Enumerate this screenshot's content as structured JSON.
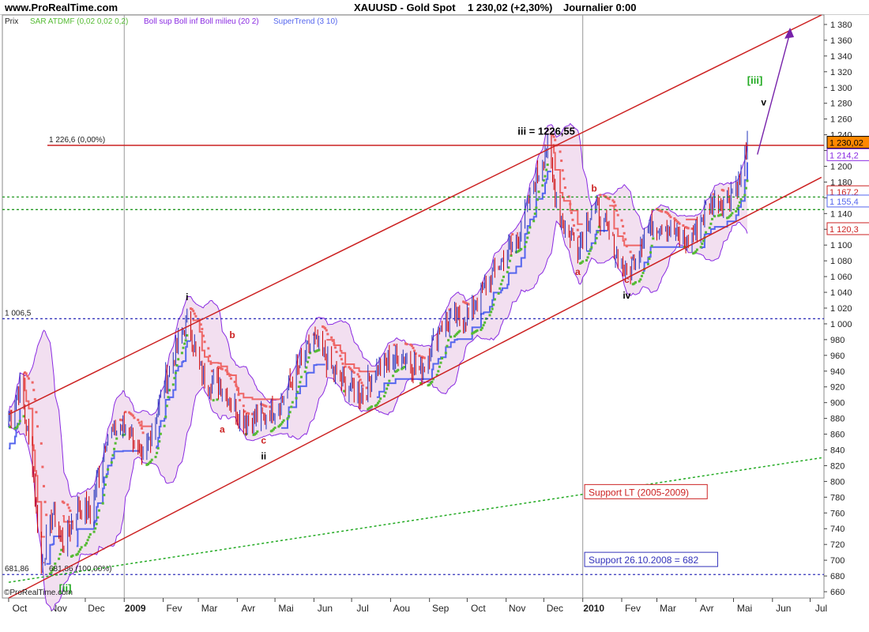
{
  "header": {
    "site": "www.ProRealTime.com",
    "instrument": "XAUUSD - Gold Spot",
    "last": "1 230,02 (+2,30%)",
    "period": "Journalier  0:00"
  },
  "legend": {
    "price": "Prix",
    "sar": "SAR ATDMF (0,02 0,02 0,2)",
    "boll": "Boll sup Boll inf Boll milieu (20 2)",
    "supertrend": "SuperTrend (3 10)"
  },
  "copyright": "©ProRealTime.com",
  "colors": {
    "candle": "#cc0000",
    "candle_up": "#2233bb",
    "bollinger": "#8a2be2",
    "bollinger_fill": "#f2dff0",
    "sar": "#55bb33",
    "supertrend_down": "#ee6666",
    "supertrend_up": "#5566ee",
    "channel": "#cc2222",
    "lt_support": "#22aa22",
    "dotted_blue": "#3333bb",
    "projection": "#7722aa",
    "axis_badge_bg": "#ff8800"
  },
  "chart_data": {
    "type": "candlestick",
    "x_ticks": [
      "Oct",
      "Nov",
      "Dec",
      "2009",
      "Fev",
      "Mar",
      "Avr",
      "Mai",
      "Jun",
      "Jul",
      "Aou",
      "Sep",
      "Oct",
      "Nov",
      "Dec",
      "2010",
      "Fev",
      "Mar",
      "Avr",
      "Mai",
      "Jun",
      "Jul"
    ],
    "y_ticks": [
      660,
      680,
      700,
      720,
      740,
      760,
      780,
      800,
      820,
      840,
      860,
      880,
      900,
      920,
      940,
      960,
      980,
      1000,
      1020,
      1040,
      1060,
      1080,
      1100,
      1120,
      1140,
      1160,
      1180,
      1200,
      1220,
      1240,
      1260,
      1280,
      1300,
      1320,
      1340,
      1360,
      1380
    ],
    "y_tick_labels": [
      "660",
      "680",
      "700",
      "720",
      "740",
      "760",
      "780",
      "800",
      "820",
      "840",
      "860",
      "880",
      "900",
      "920",
      "940",
      "960",
      "980",
      "1 000",
      "1 020",
      "1 040",
      "1 060",
      "1 080",
      "1 100",
      "1 120",
      "1 140",
      "1 160",
      "1 180",
      "1 200",
      "1 220",
      "1 240",
      "1 260",
      "1 280",
      "1 300",
      "1 320",
      "1 340",
      "1 360",
      "1 380"
    ],
    "ylim": [
      652,
      1392
    ],
    "price_path": [
      [
        "2008-10-01",
        880
      ],
      [
        "2008-10-10",
        920
      ],
      [
        "2008-10-20",
        820
      ],
      [
        "2008-10-27",
        690
      ],
      [
        "2008-11-05",
        760
      ],
      [
        "2008-11-14",
        720
      ],
      [
        "2008-11-25",
        770
      ],
      [
        "2008-12-05",
        760
      ],
      [
        "2008-12-18",
        860
      ],
      [
        "2009-01-05",
        870
      ],
      [
        "2009-01-15",
        820
      ],
      [
        "2009-02-01",
        920
      ],
      [
        "2009-02-20",
        1005
      ],
      [
        "2009-03-05",
        930
      ],
      [
        "2009-03-20",
        920
      ],
      [
        "2009-04-05",
        880
      ],
      [
        "2009-04-20",
        880
      ],
      [
        "2009-05-05",
        900
      ],
      [
        "2009-06-01",
        980
      ],
      [
        "2009-06-20",
        930
      ],
      [
        "2009-07-08",
        910
      ],
      [
        "2009-07-25",
        950
      ],
      [
        "2009-08-10",
        960
      ],
      [
        "2009-08-25",
        940
      ],
      [
        "2009-09-10",
        1000
      ],
      [
        "2009-10-01",
        1010
      ],
      [
        "2009-10-20",
        1060
      ],
      [
        "2009-11-10",
        1110
      ],
      [
        "2009-12-03",
        1226
      ],
      [
        "2009-12-15",
        1130
      ],
      [
        "2009-12-28",
        1100
      ],
      [
        "2010-01-10",
        1150
      ],
      [
        "2010-01-25",
        1100
      ],
      [
        "2010-02-05",
        1060
      ],
      [
        "2010-02-20",
        1120
      ],
      [
        "2010-03-05",
        1130
      ],
      [
        "2010-03-25",
        1100
      ],
      [
        "2010-04-10",
        1150
      ],
      [
        "2010-04-25",
        1160
      ],
      [
        "2010-05-06",
        1180
      ],
      [
        "2010-05-12",
        1230
      ]
    ],
    "horizontal_levels": [
      {
        "value": 1226.6,
        "label": "1 226,6 (0,00%)",
        "color": "#cc2222",
        "style": "solid"
      },
      {
        "value": 1006.5,
        "label": "1 006,5",
        "color": "#3333bb",
        "style": "dotted"
      },
      {
        "value": 681.86,
        "label": "681,86",
        "color": "#3333bb",
        "style": "dotted"
      },
      {
        "value": 1161,
        "label": "",
        "color": "#229922",
        "style": "dotted"
      },
      {
        "value": 1145,
        "label": "",
        "color": "#229922",
        "style": "dotted"
      }
    ],
    "level_annotation": "681,86 (100,00%)",
    "channel": {
      "upper": [
        [
          "2008-10-01",
          885
        ],
        [
          "2010-07-10",
          1392
        ]
      ],
      "lower": [
        [
          "2008-10-01",
          652
        ],
        [
          "2010-07-10",
          1186
        ]
      ],
      "mid_line": [
        [
          "2008-10-01",
          1226.6
        ],
        [
          "2010-07-10",
          1226.6
        ]
      ]
    },
    "lt_support": [
      [
        "2008-10-01",
        672
      ],
      [
        "2010-07-10",
        830
      ]
    ],
    "projection": [
      [
        "2010-05-20",
        1215
      ],
      [
        "2010-06-15",
        1370
      ]
    ],
    "wave_labels": [
      {
        "text": "i",
        "date": "2009-02-20",
        "value": 1030,
        "color": "#000000"
      },
      {
        "text": "ii",
        "date": "2009-04-22",
        "value": 828,
        "color": "#000000"
      },
      {
        "text": "iii = 1226,55",
        "date": "2009-12-03",
        "value": 1240,
        "color": "#000000"
      },
      {
        "text": "iv",
        "date": "2010-02-05",
        "value": 1032,
        "color": "#000000"
      },
      {
        "text": "v",
        "date": "2010-05-25",
        "value": 1277,
        "color": "#000000"
      },
      {
        "text": "[iii]",
        "date": "2010-05-18",
        "value": 1305,
        "color": "#22aa22"
      },
      {
        "text": "[ii]",
        "date": "2008-11-15",
        "value": 660,
        "color": "#22aa22"
      },
      {
        "text": "a",
        "date": "2009-03-20",
        "value": 862,
        "color": "#cc2222"
      },
      {
        "text": "b",
        "date": "2009-03-28",
        "value": 982,
        "color": "#cc2222"
      },
      {
        "text": "c",
        "date": "2009-04-22",
        "value": 848,
        "color": "#cc2222"
      },
      {
        "text": "a",
        "date": "2009-12-28",
        "value": 1062,
        "color": "#cc2222"
      },
      {
        "text": "b",
        "date": "2010-01-10",
        "value": 1168,
        "color": "#cc2222"
      },
      {
        "text": "c",
        "date": "2010-02-05",
        "value": 1052,
        "color": "#cc2222"
      }
    ],
    "boxes": [
      {
        "text": "Support LT (2005-2009)",
        "date": "2010-01-05",
        "value": 784,
        "color": "#cc2222"
      },
      {
        "text": "Support 26.10.2008 = 682",
        "date": "2010-01-05",
        "value": 698,
        "color": "#3333bb"
      }
    ],
    "axis_badges": [
      {
        "text": "1 230,02",
        "value": 1230.02,
        "bg": "#ff8800",
        "fg": "#000000"
      },
      {
        "text": "1 214,2",
        "value": 1214.2,
        "bg": "#ffffff",
        "fg": "#8a2be2"
      },
      {
        "text": "1 167,2",
        "value": 1167.2,
        "bg": "#ffffff",
        "fg": "#cc2222"
      },
      {
        "text": "1 155,4",
        "value": 1155.4,
        "bg": "#ffffff",
        "fg": "#5566ee"
      },
      {
        "text": "1 120,3",
        "value": 1120.3,
        "bg": "#ffffff",
        "fg": "#cc2222"
      }
    ]
  }
}
